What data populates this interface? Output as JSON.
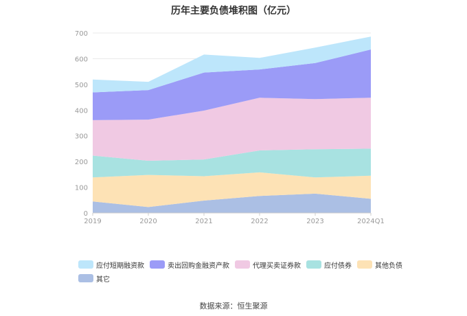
{
  "chart_data": {
    "type": "area",
    "stacked": true,
    "title": "历年主要负债堆积图（亿元）",
    "categories": [
      "2019",
      "2020",
      "2021",
      "2022",
      "2023",
      "2024Q1"
    ],
    "ylim": [
      0,
      700
    ],
    "yticks": [
      0,
      100,
      200,
      300,
      400,
      500,
      600,
      700
    ],
    "grid": true,
    "legend_position": "bottom",
    "series": [
      {
        "name": "应付短期融资款",
        "color": "#bde6fb",
        "values": [
          50,
          32,
          70,
          45,
          60,
          50
        ]
      },
      {
        "name": "卖出回购金融资产款",
        "color": "#9b9bf7",
        "values": [
          108,
          115,
          148,
          110,
          140,
          188
        ]
      },
      {
        "name": "代理买卖证券款",
        "color": "#f0c9e3",
        "values": [
          138,
          160,
          190,
          205,
          195,
          198
        ]
      },
      {
        "name": "应付债券",
        "color": "#a8e2e1",
        "values": [
          85,
          55,
          65,
          85,
          110,
          105
        ]
      },
      {
        "name": "其他负债",
        "color": "#fde2b5",
        "values": [
          93,
          125,
          95,
          92,
          63,
          90
        ]
      },
      {
        "name": "其它",
        "color": "#abbfe4",
        "values": [
          45,
          23,
          48,
          66,
          75,
          55
        ]
      }
    ]
  },
  "source_text": "数据来源：恒生聚源"
}
